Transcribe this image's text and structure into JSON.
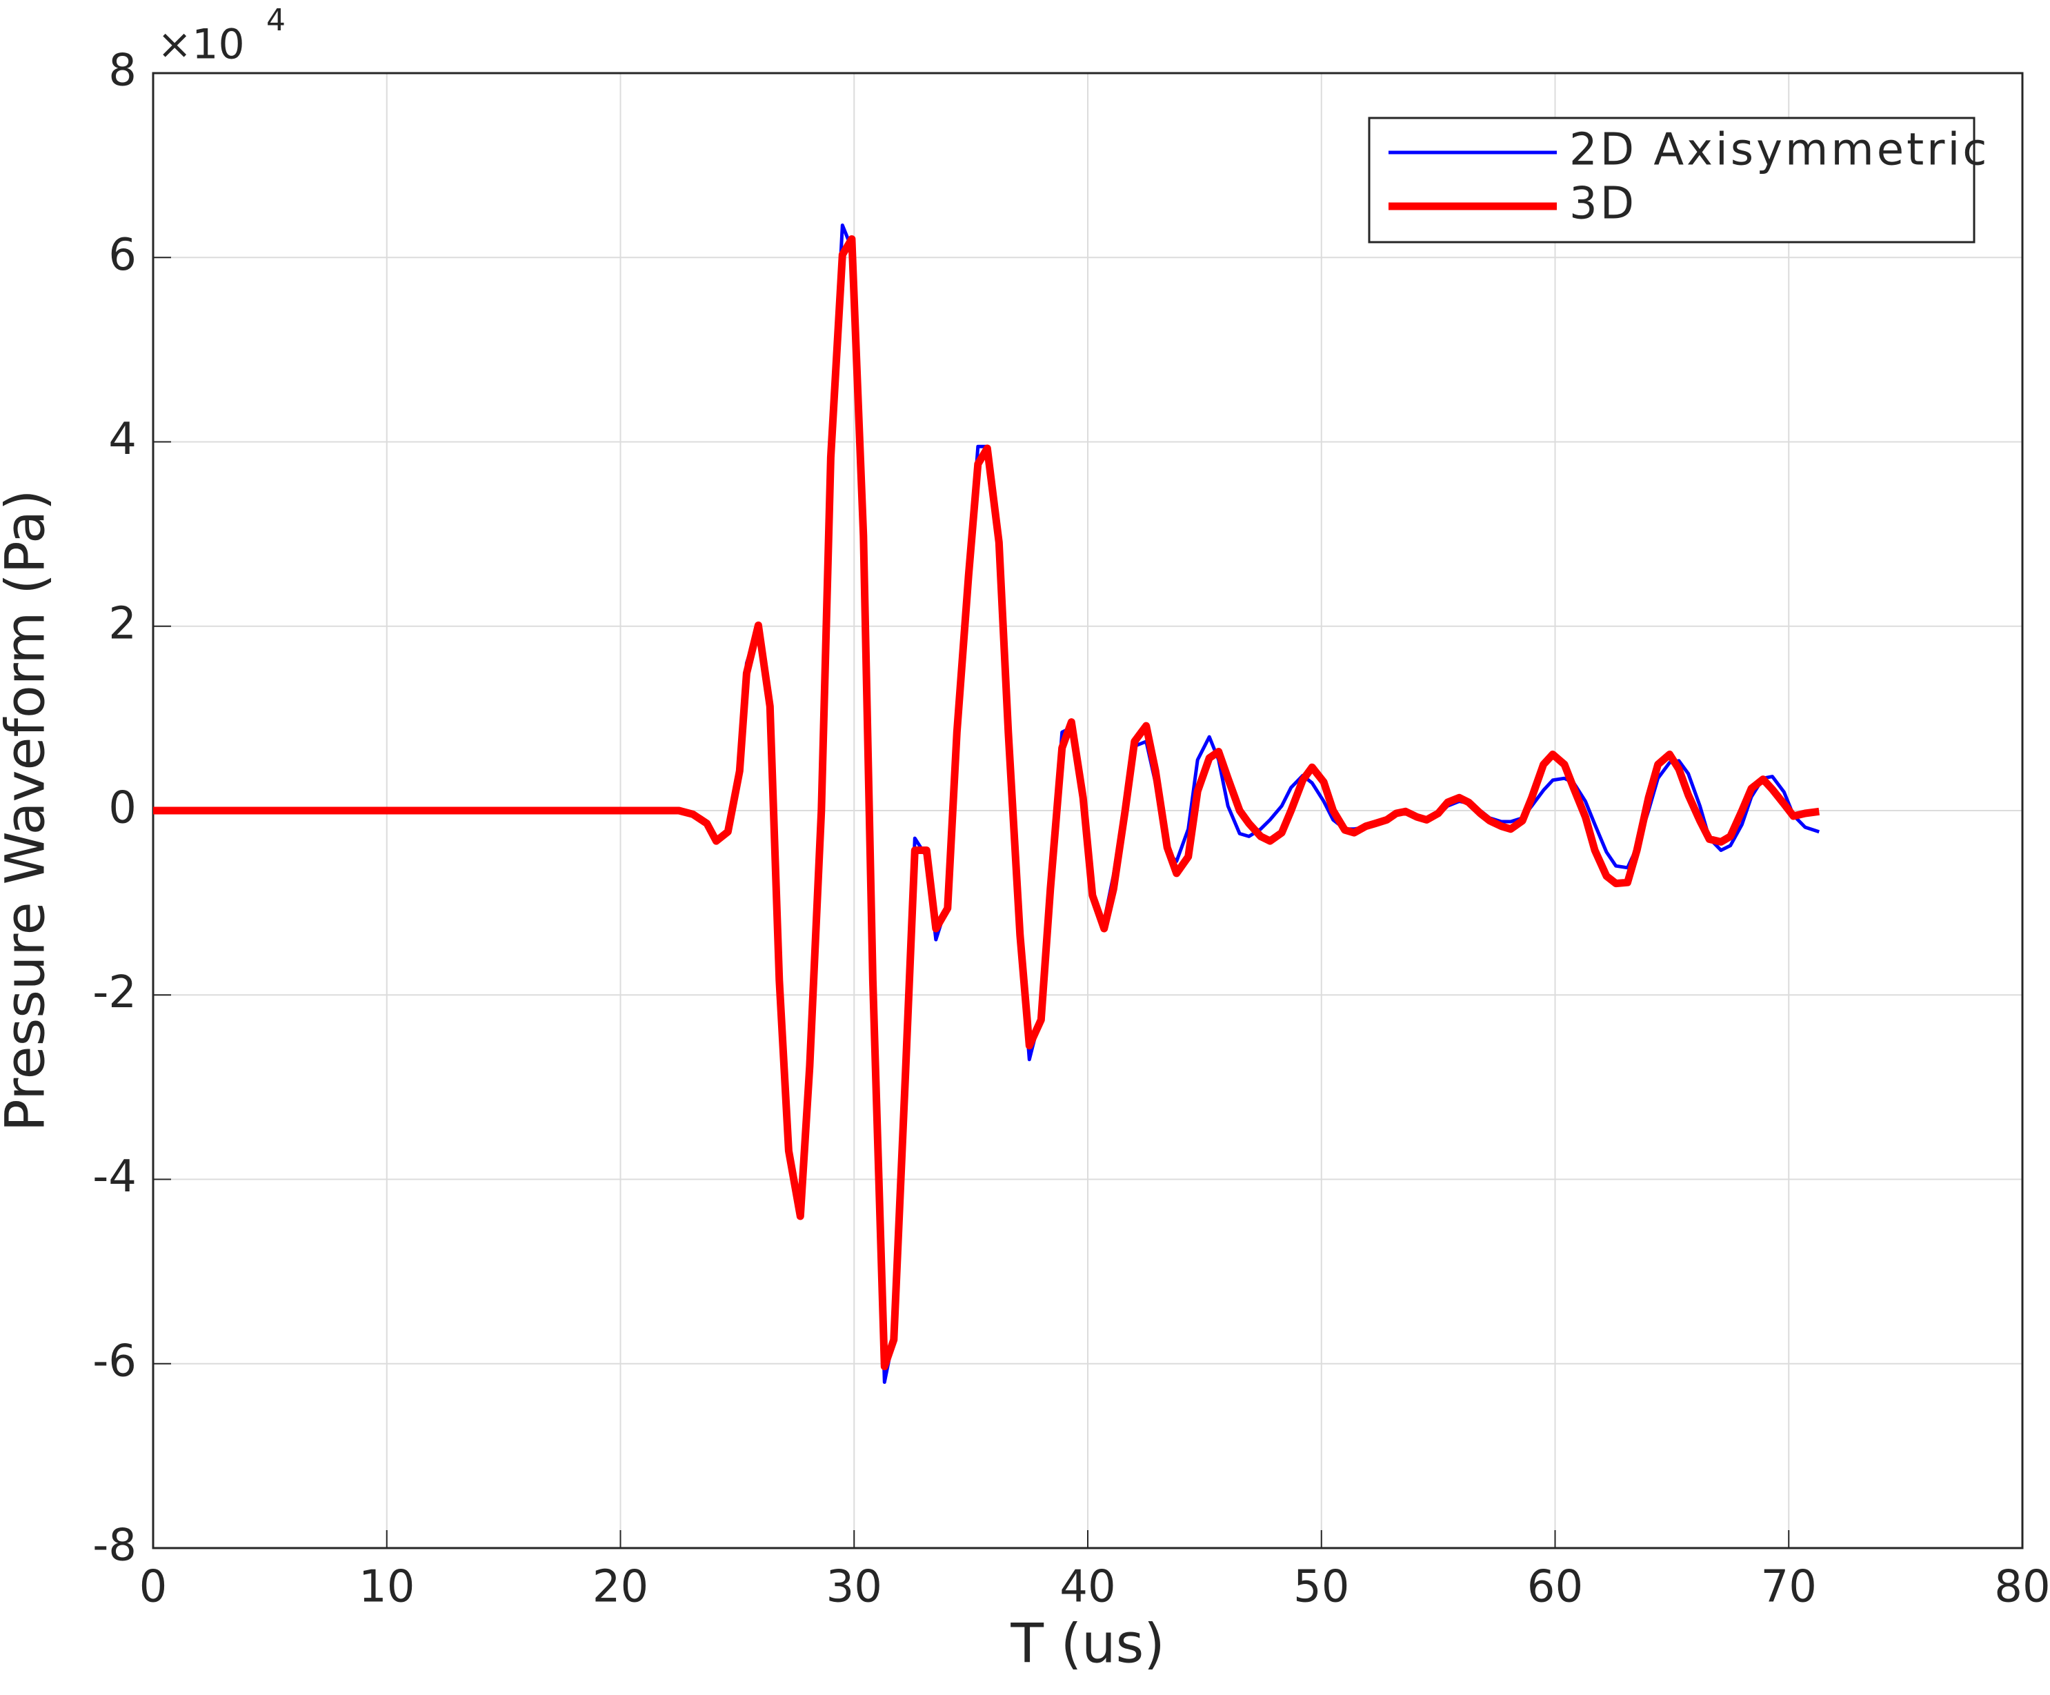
{
  "chart_data": {
    "type": "line",
    "xlabel": "T (us)",
    "ylabel": "Pressure Waveform (Pa)",
    "y_multiplier": {
      "base": "×10",
      "exponent": "4"
    },
    "x": [
      0,
      22.5,
      23.1,
      23.7,
      24.1,
      24.6,
      25.1,
      25.4,
      25.9,
      26.4,
      26.8,
      27.2,
      27.7,
      28.1,
      28.6,
      29.0,
      29.5,
      29.9,
      30.4,
      30.8,
      31.3,
      31.7,
      32.2,
      32.6,
      33.1,
      33.5,
      34.0,
      34.4,
      34.9,
      35.3,
      35.7,
      36.2,
      36.6,
      37.1,
      37.5,
      38.0,
      38.4,
      38.9,
      39.3,
      39.8,
      40.2,
      40.7,
      41.1,
      41.6,
      42.0,
      42.5,
      42.9,
      43.4,
      43.8,
      44.3,
      44.7,
      45.2,
      45.6,
      46.0,
      46.5,
      46.9,
      47.4,
      47.8,
      48.3,
      48.7,
      49.2,
      49.6,
      50.1,
      50.5,
      51.0,
      51.4,
      51.9,
      52.3,
      52.8,
      53.2,
      53.6,
      54.1,
      54.5,
      55.0,
      55.4,
      55.9,
      56.3,
      56.8,
      57.2,
      57.7,
      58.1,
      58.6,
      59.0,
      59.5,
      59.9,
      60.4,
      60.8,
      61.3,
      61.7,
      62.2,
      62.6,
      63.1,
      63.5,
      64.0,
      64.4,
      64.9,
      65.3,
      65.7,
      66.2,
      66.6,
      67.1,
      67.5,
      68.0,
      68.4,
      68.9,
      69.3,
      69.8,
      70.2,
      70.7,
      71.3
    ],
    "series": [
      {
        "name": "2D Axisymmetric",
        "color": "#0000ff",
        "width": 5,
        "values": [
          0,
          0,
          -0.04,
          -0.14,
          -0.33,
          -0.23,
          0.43,
          1.6,
          2.0,
          1.1,
          -1.9,
          -3.8,
          -4.3,
          -2.8,
          0,
          3.9,
          6.35,
          6.1,
          2.9,
          -1.9,
          -6.2,
          -5.7,
          -2.8,
          -0.3,
          -0.5,
          -1.4,
          -1.0,
          0.9,
          2.6,
          3.95,
          3.95,
          2.9,
          0.8,
          -1.4,
          -2.7,
          -2.2,
          -0.8,
          0.85,
          0.9,
          0.1,
          -0.9,
          -1.2,
          -0.7,
          0.1,
          0.7,
          0.75,
          0.3,
          -0.45,
          -0.55,
          -0.2,
          0.55,
          0.8,
          0.55,
          0.05,
          -0.25,
          -0.28,
          -0.2,
          -0.1,
          0.05,
          0.25,
          0.38,
          0.3,
          0.1,
          -0.1,
          -0.2,
          -0.2,
          -0.18,
          -0.15,
          -0.1,
          -0.05,
          -0.02,
          -0.05,
          -0.08,
          -0.05,
          0.05,
          0.1,
          0.08,
          0,
          -0.08,
          -0.12,
          -0.12,
          -0.08,
          0.05,
          0.22,
          0.33,
          0.35,
          0.3,
          0.1,
          -0.15,
          -0.45,
          -0.6,
          -0.62,
          -0.4,
          0,
          0.35,
          0.52,
          0.54,
          0.4,
          0.05,
          -0.3,
          -0.43,
          -0.38,
          -0.15,
          0.15,
          0.35,
          0.37,
          0.2,
          -0.05,
          -0.18,
          -0.23
        ]
      },
      {
        "name": "3D",
        "color": "#ff0000",
        "width": 11,
        "values": [
          0,
          0,
          -0.04,
          -0.14,
          -0.33,
          -0.23,
          0.43,
          1.49,
          2.01,
          1.13,
          -1.84,
          -3.69,
          -4.4,
          -2.77,
          0,
          3.83,
          6.03,
          6.2,
          2.98,
          -1.84,
          -6.03,
          -5.74,
          -2.84,
          -0.43,
          -0.43,
          -1.28,
          -1.06,
          0.85,
          2.55,
          3.76,
          3.93,
          2.91,
          0.85,
          -1.35,
          -2.55,
          -2.27,
          -0.85,
          0.68,
          0.96,
          0.14,
          -0.92,
          -1.28,
          -0.85,
          0,
          0.75,
          0.92,
          0.43,
          -0.4,
          -0.68,
          -0.5,
          0.21,
          0.57,
          0.64,
          0.35,
          0,
          -0.14,
          -0.28,
          -0.33,
          -0.24,
          0,
          0.33,
          0.47,
          0.31,
          0,
          -0.21,
          -0.24,
          -0.17,
          -0.14,
          -0.1,
          -0.03,
          -0.01,
          -0.07,
          -0.1,
          -0.03,
          0.09,
          0.14,
          0.09,
          -0.03,
          -0.11,
          -0.17,
          -0.2,
          -0.11,
          0.14,
          0.5,
          0.61,
          0.5,
          0.24,
          -0.07,
          -0.43,
          -0.71,
          -0.79,
          -0.78,
          -0.43,
          0.14,
          0.5,
          0.61,
          0.45,
          0.17,
          -0.11,
          -0.31,
          -0.34,
          -0.28,
          0,
          0.24,
          0.34,
          0.23,
          0.07,
          -0.06,
          -0.03,
          -0.01
        ]
      }
    ],
    "xlim": [
      0,
      80
    ],
    "xticks": [
      0,
      10,
      20,
      30,
      40,
      50,
      60,
      70,
      80
    ],
    "ylim": [
      -8,
      8
    ],
    "yticks": [
      -8,
      -6,
      -4,
      -2,
      0,
      2,
      4,
      6,
      8
    ],
    "grid": true,
    "legend": "northeast"
  }
}
